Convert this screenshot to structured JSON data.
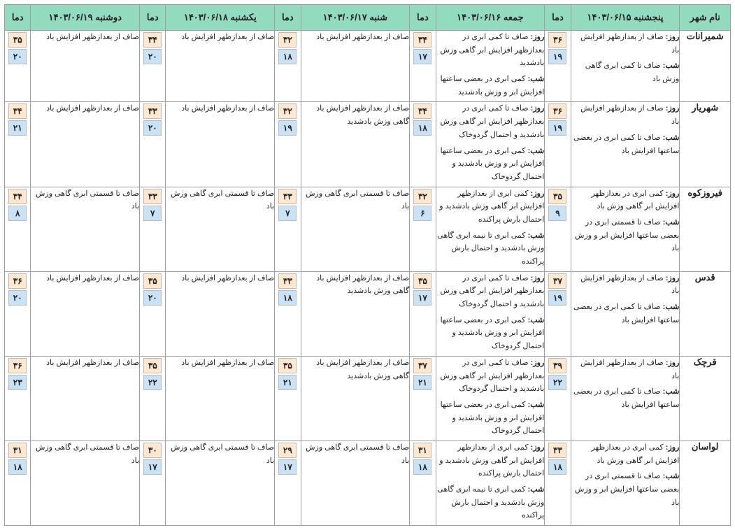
{
  "labels": {
    "city": "نام شهر",
    "temp": "دما",
    "day": "روز:",
    "night": "شب:"
  },
  "dates": [
    "پنجشنبه ۱۴۰۳/۰۶/۱۵",
    "جمعه ۱۴۰۳/۰۶/۱۶",
    "شنبه ۱۴۰۳/۰۶/۱۷",
    "یکشنبه ۱۴۰۳/۰۶/۱۸",
    "دوشنبه ۱۴۰۳/۰۶/۱۹"
  ],
  "colors": {
    "header_bg": "#92dbbf",
    "hi_bg": "#ffe7d0",
    "lo_bg": "#c9e2f5",
    "border": "#9e9e9e"
  },
  "cities": [
    {
      "name": "شمیرانات",
      "days": [
        {
          "day": "صاف از بعدازظهر افزایش باد",
          "night": "صاف تا کمی ابری گاهی وزش باد",
          "hi": "۳۶",
          "lo": "۱۹"
        },
        {
          "day": "صاف تا کمی ابری در بعدازظهر افزایش ابر گاهی وزش بادشدید",
          "night": "کمی ابری در بعضی ساعتها افزایش ابر و وزش بادشدید",
          "hi": "۳۴",
          "lo": "۱۷"
        },
        {
          "day": "صاف از بعدازظهر افزایش باد",
          "night": "",
          "hi": "۳۲",
          "lo": "۱۸"
        },
        {
          "day": "صاف از بعدازظهر افزایش باد",
          "night": "",
          "hi": "۳۴",
          "lo": "۲۰"
        },
        {
          "day": "صاف از بعدازظهر افزایش باد",
          "night": "",
          "hi": "۳۵",
          "lo": "۲۰"
        }
      ]
    },
    {
      "name": "شهریار",
      "days": [
        {
          "day": "صاف از بعدازظهر افزایش باد",
          "night": "صاف تا کمی ابری در بعضی ساعتها افزایش باد",
          "hi": "۳۶",
          "lo": "۱۹"
        },
        {
          "day": "صاف تا کمی ابری در بعدازظهر افزایش ابر گاهی وزش بادشدید و احتمال گردوخاک",
          "night": "کمی ابری در بعضی ساعتها افزایش ابر و وزش بادشدید و احتمال گردوخاک",
          "hi": "۳۴",
          "lo": "۱۸"
        },
        {
          "day": "صاف از بعدازظهر افزایش باد گاهی وزش بادشدید",
          "night": "",
          "hi": "۳۲",
          "lo": "۱۹"
        },
        {
          "day": "صاف از بعدازظهر افزایش باد",
          "night": "",
          "hi": "۳۳",
          "lo": "۲۰"
        },
        {
          "day": "صاف از بعدازظهر افزایش باد",
          "night": "",
          "hi": "۳۴",
          "lo": "۲۱"
        }
      ]
    },
    {
      "name": "فیروزکوه",
      "days": [
        {
          "day": "کمی ابری در بعدازظهر افزایش ابر گاهی وزش باد",
          "night": "صاف تا قسمتی ابری در بعضی ساعتها افزایش ابر و وزش باد",
          "hi": "۳۵",
          "lo": "۹"
        },
        {
          "day": "کمی ابری از بعدازظهر افزایش ابر گاهی وزش بادشدید و احتمال بارش پراکنده",
          "night": "کمی ابری تا نیمه ابری گاهی وزش بادشدید و احتمال بارش پراکنده",
          "hi": "۳۲",
          "lo": "۶"
        },
        {
          "day": "صاف تا قسمتی ابری گاهی وزش باد",
          "night": "",
          "hi": "۳۳",
          "lo": "۷"
        },
        {
          "day": "صاف تا قسمتی ابری گاهی وزش باد",
          "night": "",
          "hi": "۳۳",
          "lo": "۷"
        },
        {
          "day": "صاف تا قسمتی ابری گاهی وزش باد",
          "night": "",
          "hi": "۳۴",
          "lo": "۸"
        }
      ]
    },
    {
      "name": "قدس",
      "days": [
        {
          "day": "صاف از بعدازظهر افزایش باد",
          "night": "صاف تا کمی ابری در بعضی ساعتها افزایش باد",
          "hi": "۳۷",
          "lo": "۱۹"
        },
        {
          "day": "صاف تا کمی ابری در بعدازظهر افزایش ابر گاهی وزش بادشدید و احتمال گردوخاک",
          "night": "کمی ابری در بعضی ساعتها افزایش ابر و وزش بادشدید و احتمال گردوخاک",
          "hi": "۳۵",
          "lo": "۱۷"
        },
        {
          "day": "صاف از بعدازظهر افزایش باد گاهی وزش بادشدید",
          "night": "",
          "hi": "۳۳",
          "lo": "۱۸"
        },
        {
          "day": "صاف از بعدازظهر افزایش باد",
          "night": "",
          "hi": "۳۵",
          "lo": "۲۰"
        },
        {
          "day": "صاف از بعدازظهر افزایش باد",
          "night": "",
          "hi": "۳۶",
          "lo": "۲۰"
        }
      ]
    },
    {
      "name": "قرچک",
      "days": [
        {
          "day": "صاف از بعدازظهر افزایش باد",
          "night": "صاف تا کمی ابری در بعضی ساعتها افزایش باد",
          "hi": "۳۹",
          "lo": "۲۲"
        },
        {
          "day": "صاف تا کمی ابری در بعدازظهر افزایش ابر گاهی وزش بادشدید و احتمال گردوخاک",
          "night": "کمی ابری در بعضی ساعتها افزایش ابر و وزش بادشدید و احتمال گردوخاک",
          "hi": "۳۷",
          "lo": "۲۱"
        },
        {
          "day": "صاف از بعدازظهر افزایش باد گاهی وزش بادشدید",
          "night": "",
          "hi": "۳۵",
          "lo": "۲۱"
        },
        {
          "day": "صاف از بعدازظهر افزایش باد",
          "night": "",
          "hi": "۳۵",
          "lo": "۲۲"
        },
        {
          "day": "صاف از بعدازظهر افزایش باد",
          "night": "",
          "hi": "۳۶",
          "lo": "۲۳"
        }
      ]
    },
    {
      "name": "لواسان",
      "days": [
        {
          "day": "کمی ابری در بعدازظهر افزایش ابر گاهی وزش باد",
          "night": "صاف تا قسمتی ابری در بعضی ساعتها افزایش ابر و وزش باد",
          "hi": "۳۳",
          "lo": "۱۸"
        },
        {
          "day": "کمی ابری از بعدازظهر افزایش ابر گاهی وزش بادشدید و احتمال بارش پراکنده",
          "night": "کمی ابری تا نیمه ابری گاهی وزش بادشدید و احتمال بارش پراکنده",
          "hi": "۳۱",
          "lo": "۱۸"
        },
        {
          "day": "صاف تا قسمتی ابری گاهی وزش باد",
          "night": "",
          "hi": "۲۹",
          "lo": "۱۷"
        },
        {
          "day": "صاف تا قسمتی ابری گاهی وزش باد",
          "night": "",
          "hi": "۳۰",
          "lo": "۱۷"
        },
        {
          "day": "صاف تا قسمتی ابری گاهی وزش باد",
          "night": "",
          "hi": "۳۱",
          "lo": "۱۸"
        }
      ]
    }
  ]
}
